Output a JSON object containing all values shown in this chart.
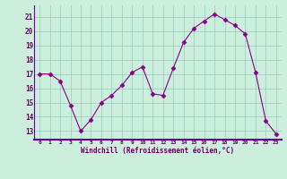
{
  "x": [
    0,
    1,
    2,
    3,
    4,
    5,
    6,
    7,
    8,
    9,
    10,
    11,
    12,
    13,
    14,
    15,
    16,
    17,
    18,
    19,
    20,
    21,
    22,
    23
  ],
  "y": [
    17.0,
    17.0,
    16.5,
    14.8,
    13.0,
    13.8,
    15.0,
    15.5,
    16.2,
    17.1,
    17.5,
    15.6,
    15.5,
    17.4,
    19.2,
    20.2,
    20.7,
    21.2,
    20.8,
    20.4,
    19.8,
    17.1,
    13.7,
    12.8
  ],
  "line_color": "#880088",
  "marker": "D",
  "marker_size": 2.5,
  "bg_color": "#cceedd",
  "grid_color": "#99ccbb",
  "xlabel": "Windchill (Refroidissement éolien,°C)",
  "ylabel_ticks": [
    13,
    14,
    15,
    16,
    17,
    18,
    19,
    20,
    21
  ],
  "ylim": [
    12.4,
    21.8
  ],
  "xlim": [
    -0.5,
    23.5
  ],
  "font_color": "#660066",
  "axis_line_color": "#660099"
}
